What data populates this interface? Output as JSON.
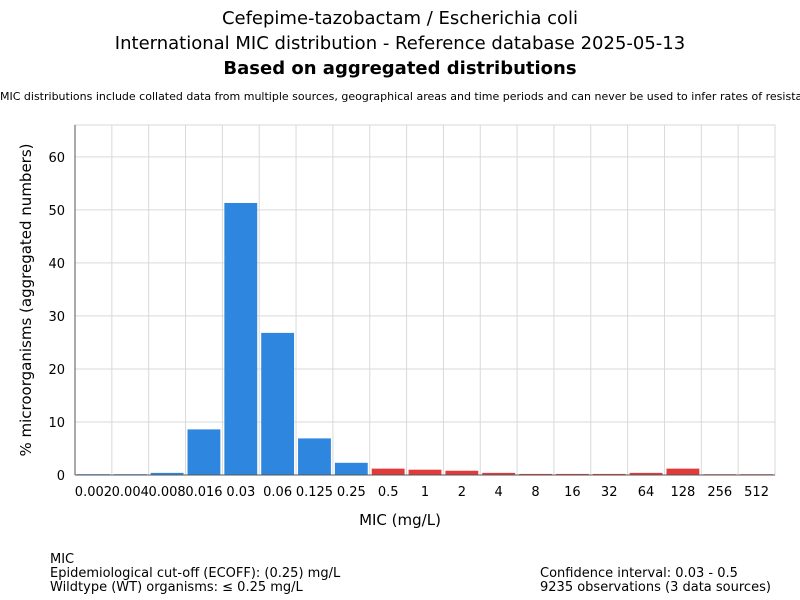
{
  "chart_data": {
    "type": "bar",
    "title_lines": [
      "Cefepime-tazobactam / Escherichia coli",
      "International MIC distribution - Reference database 2025-05-13",
      "Based on aggregated distributions"
    ],
    "subtitle": "MIC distributions include collated data from multiple sources, geographical areas and time periods and can never be used to infer rates of resistance",
    "xlabel": "MIC (mg/L)",
    "ylabel": "% microorganisms (aggregated numbers)",
    "ylim": [
      0,
      66
    ],
    "yticks": [
      0,
      10,
      20,
      30,
      40,
      50,
      60
    ],
    "grid": true,
    "categories": [
      "0.002",
      "0.004",
      "0.008",
      "0.016",
      "0.03",
      "0.06",
      "0.125",
      "0.25",
      "0.5",
      "1",
      "2",
      "4",
      "8",
      "16",
      "32",
      "64",
      "128",
      "256",
      "512"
    ],
    "values": [
      0.1,
      0.05,
      0.4,
      8.6,
      51.3,
      26.8,
      6.9,
      2.3,
      1.2,
      1.0,
      0.8,
      0.4,
      0.2,
      0.2,
      0.2,
      0.4,
      1.2,
      0.1,
      0.1
    ],
    "wildtype_max_index": 7,
    "colors": {
      "wildtype": "#2e86de",
      "non_wildtype": "#e03a3a",
      "grid": "#d9d9d9",
      "axis": "#555555"
    }
  },
  "footer": {
    "left": [
      "MIC",
      "Epidemiological cut-off (ECOFF): (0.25) mg/L",
      "Wildtype (WT) organisms: ≤ 0.25 mg/L"
    ],
    "right": [
      "Confidence interval: 0.03 - 0.5",
      "9235 observations (3 data sources)"
    ]
  }
}
